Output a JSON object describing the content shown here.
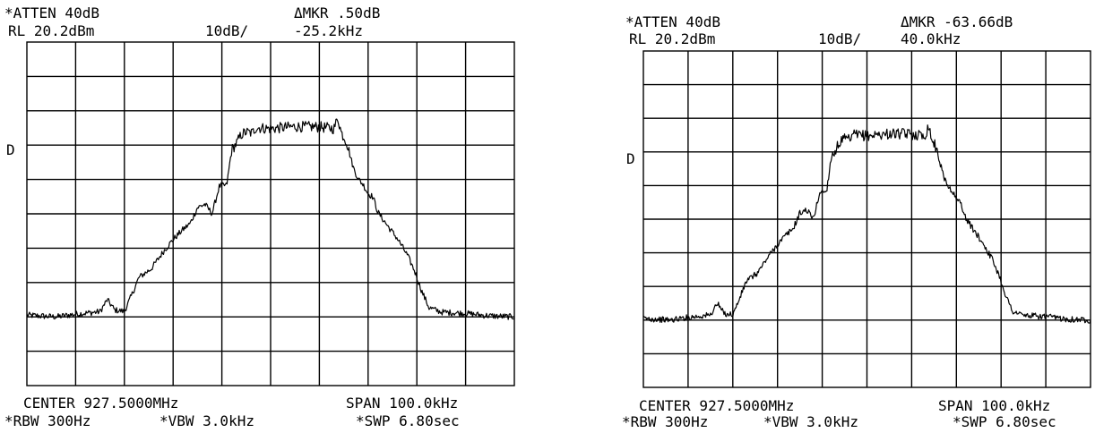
{
  "chart_data": [
    {
      "type": "line",
      "header": {
        "atten": "*ATTEN 40dB",
        "ref_level": "RL 20.2dBm",
        "scale": "10dB/",
        "marker_delta": "ΔMKR .50dB",
        "marker_freq": "-25.2kHz"
      },
      "side_mark": "D",
      "footer": {
        "center": "CENTER 927.5000MHz",
        "span": "SPAN 100.0kHz",
        "rbw": "*RBW 300Hz",
        "vbw": "*VBW 3.0kHz",
        "swp": "*SWP 6.80sec"
      },
      "xlim": [
        927.45,
        927.55
      ],
      "ylim": [
        -79.8,
        20.2
      ],
      "grid": {
        "x_divisions": 10,
        "y_divisions": 10,
        "visible": true
      },
      "series": [
        {
          "x": [
            927.45,
            927.456,
            927.46,
            927.465,
            927.4665,
            927.468,
            927.47,
            927.4715,
            927.473,
            927.4755,
            927.478,
            927.48,
            927.482,
            927.4835,
            927.485,
            927.4865,
            927.488,
            927.4895,
            927.491,
            927.492,
            927.493,
            927.494,
            927.495,
            927.4962,
            927.497,
            927.5,
            927.505,
            927.51,
            927.513,
            927.5138,
            927.5145,
            927.5155,
            927.517,
            927.518,
            927.519,
            927.52,
            927.521,
            927.522,
            927.524,
            927.526,
            927.528,
            927.5295,
            927.531,
            927.5325,
            927.535,
            927.54,
            927.545,
            927.55
          ],
          "y": [
            -59.3,
            -59.8,
            -59.0,
            -58.3,
            -54.8,
            -57.8,
            -58.2,
            -53.5,
            -48.3,
            -45.8,
            -40.8,
            -37.3,
            -34.4,
            -32.6,
            -28.0,
            -27.0,
            -29.7,
            -21.7,
            -21.5,
            -11.2,
            -9.3,
            -6.7,
            -6.0,
            -6.3,
            -4.7,
            -5.0,
            -4.4,
            -4.5,
            -5.0,
            -1.8,
            -6.2,
            -8.5,
            -16.5,
            -19.7,
            -21.3,
            -23.9,
            -24.9,
            -29.3,
            -33.3,
            -37.0,
            -41.7,
            -46.3,
            -52.3,
            -57.1,
            -58.4,
            -58.8,
            -59.5,
            -59.8
          ]
        }
      ]
    },
    {
      "type": "line",
      "header": {
        "atten": "*ATTEN 40dB",
        "ref_level": "RL 20.2dBm",
        "scale": "10dB/",
        "marker_delta": "ΔMKR -63.66dB",
        "marker_freq": "40.0kHz"
      },
      "side_mark": "D",
      "footer": {
        "center": "CENTER 927.5000MHz",
        "span": "SPAN 100.0kHz",
        "rbw": "*RBW 300Hz",
        "vbw": "*VBW 3.0kHz",
        "swp": "*SWP 6.80sec"
      },
      "xlim": [
        927.45,
        927.55
      ],
      "ylim": [
        -79.8,
        20.2
      ],
      "grid": {
        "x_divisions": 10,
        "y_divisions": 10,
        "visible": true
      },
      "series": [
        {
          "x": [
            927.45,
            927.456,
            927.46,
            927.465,
            927.4665,
            927.468,
            927.47,
            927.4715,
            927.473,
            927.4755,
            927.478,
            927.48,
            927.482,
            927.4835,
            927.485,
            927.4865,
            927.488,
            927.4895,
            927.491,
            927.492,
            927.493,
            927.494,
            927.495,
            927.4962,
            927.497,
            927.5,
            927.505,
            927.51,
            927.513,
            927.5138,
            927.5145,
            927.5155,
            927.517,
            927.518,
            927.519,
            927.52,
            927.521,
            927.522,
            927.524,
            927.526,
            927.528,
            927.5295,
            927.531,
            927.5325,
            927.535,
            927.54,
            927.545,
            927.55
          ],
          "y": [
            -59.3,
            -59.8,
            -59.0,
            -58.3,
            -54.8,
            -57.8,
            -58.2,
            -53.5,
            -48.3,
            -45.8,
            -40.8,
            -37.3,
            -34.4,
            -32.6,
            -28.0,
            -27.0,
            -29.7,
            -21.7,
            -21.5,
            -11.2,
            -9.3,
            -6.7,
            -6.0,
            -6.3,
            -4.7,
            -5.0,
            -4.4,
            -4.5,
            -5.0,
            -1.8,
            -6.2,
            -8.5,
            -16.5,
            -19.7,
            -21.3,
            -23.9,
            -24.9,
            -29.3,
            -33.3,
            -37.0,
            -41.7,
            -46.3,
            -52.3,
            -57.1,
            -58.4,
            -58.8,
            -59.5,
            -59.8
          ]
        }
      ]
    }
  ]
}
